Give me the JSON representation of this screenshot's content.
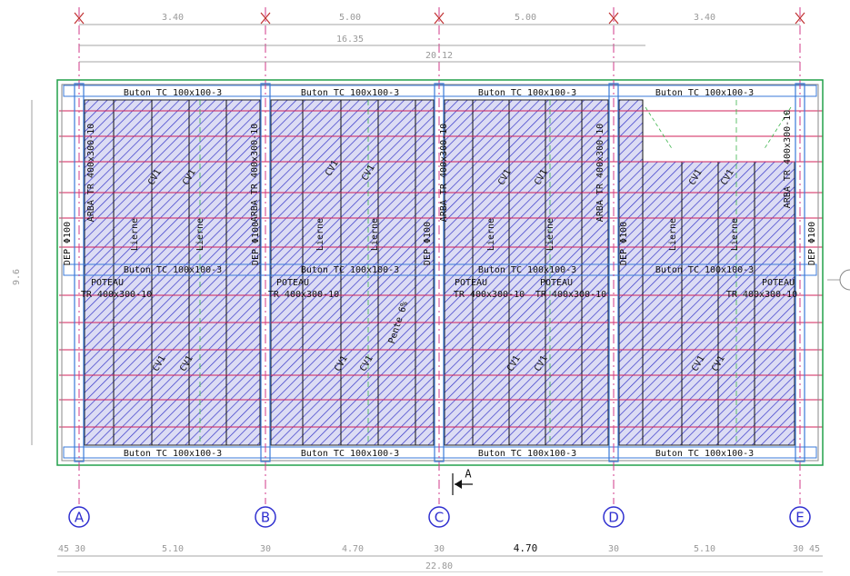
{
  "top_dimensions": [
    "3.40",
    "5.00",
    "5.00",
    "3.40"
  ],
  "overall_top_dimensions": [
    "16.35",
    "20.12"
  ],
  "left_dimension": "9.6",
  "bottom_dimensions": [
    "45",
    "30",
    "5.10",
    "30",
    "4.70",
    "30",
    "4.70",
    "30",
    "5.10",
    "30",
    "45"
  ],
  "overall_bottom_dimension": "22.80",
  "axes": [
    "A",
    "B",
    "C",
    "D",
    "E"
  ],
  "top_beams": [
    "Buton TC 100x100-3",
    "Buton TC 100x100-3",
    "Buton TC 100x100-3",
    "Buton TC 100x100-3"
  ],
  "middle_beams": [
    "Buton TC 100x100-3",
    "Buton TC 100x100-3",
    "Buton TC 100x100-3",
    "Buton TC 100x100-3"
  ],
  "bottom_beams": [
    "Buton TC 100x100-3",
    "Buton TC 100x100-3",
    "Buton TC 100x100-3",
    "Buton TC 100x100-3"
  ],
  "arba_labels": [
    "ARBA TR 400x300-10",
    "ARBA TR 400x300-10",
    "ARBA TR 400x300-10",
    "ARBA TR 400x300-10",
    "ARBA TR 400x300-10"
  ],
  "dep_labels": [
    "DEP Φ100",
    "DEP Φ100",
    "DEP Φ100",
    "DEP Φ100",
    "DEP Φ100"
  ],
  "poteau_labels": [
    "POTEAU",
    "POTEAU",
    "POTEAU",
    "POTEAU",
    "POTEAU"
  ],
  "column_section_labels": [
    "TR 400x300-10",
    "TR 400x300-10",
    "TR 400x300-10",
    "TR 400x300-10",
    "TR 400x300-10"
  ],
  "lierne_labels": [
    "Lierne",
    "Lierne",
    "Lierne",
    "Lierne",
    "Lierne",
    "Lierne",
    "Lierne",
    "Lierne"
  ],
  "cv_labels": [
    "CV1",
    "CV1",
    "CV1",
    "CV1",
    "CV1",
    "CV1",
    "CV1",
    "CV1",
    "CV1",
    "CV1",
    "CV1",
    "CV1",
    "CV1",
    "CV1",
    "CV1",
    "CV1"
  ],
  "slope_label": "Pente 6%",
  "section_label": "A"
}
